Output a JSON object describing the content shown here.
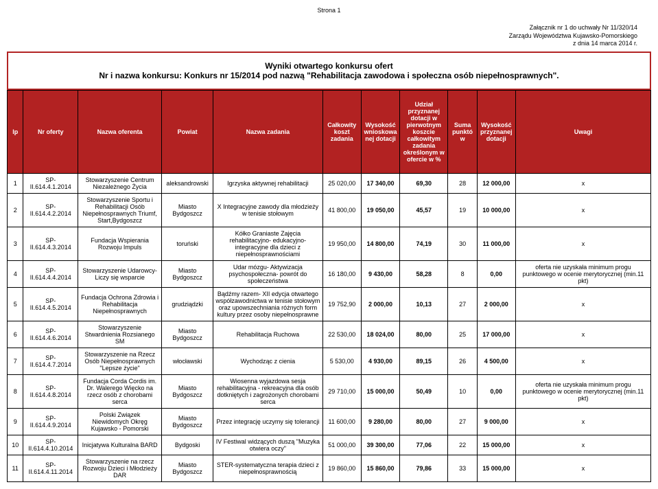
{
  "page_label": "Strona 1",
  "attachment": {
    "line1": "Załącznik nr 1 do uchwały Nr 11/320/14",
    "line2": "Zarządu Województwa Kujawsko-Pomorskiego",
    "line3": "z dnia 14 marca 2014 r."
  },
  "title": {
    "main": "Wyniki otwartego konkursu ofert",
    "sub": "Nr i nazwa konkursu: Konkurs nr 15/2014 pod nazwą \"Rehabilitacja zawodowa i społeczna osób niepełnosprawnych\"."
  },
  "columns": [
    "lp",
    "Nr oferty",
    "Nazwa oferenta",
    "Powiat",
    "Nazwa zadania",
    "Całkowity koszt zadania",
    "Wysokość wnioskowanej dotacji",
    "Udział przyznanej dotacji w pierwotnym koszcie całkowitym zadania określonym w ofercie w %",
    "Suma punktów",
    "Wysokość przyznanej dotacji",
    "Uwagi"
  ],
  "rows": [
    {
      "lp": "1",
      "nr": "SP-II.614.4.1.2014",
      "oferent": "Stowarzyszenie Centrum Niezależnego Życia",
      "powiat": "aleksandrowski",
      "zadanie": "Igrzyska aktywnej rehabilitacji",
      "koszt": "25 020,00",
      "wniosk": "17 340,00",
      "udzial": "69,30",
      "suma": "28",
      "przyzn": "12 000,00",
      "uwagi": "x"
    },
    {
      "lp": "2",
      "nr": "SP-II.614.4.2.2014",
      "oferent": "Stowarzyszenie Sportu i Rehabilitacji Osób Niepełnosprawnych Triumf, Start,Bydgoszcz",
      "powiat": "Miasto Bydgoszcz",
      "zadanie": "X Integracyjne zawody dla młodzieży w tenisie stołowym",
      "koszt": "41 800,00",
      "wniosk": "19 050,00",
      "udzial": "45,57",
      "suma": "19",
      "przyzn": "10 000,00",
      "uwagi": "x"
    },
    {
      "lp": "3",
      "nr": "SP-II.614.4.3.2014",
      "oferent": "Fundacja Wspierania Rozwoju Impuls",
      "powiat": "toruński",
      "zadanie": "Kółko Graniaste Zajęcia rehabilitacyjno- edukacyjno- integracyjne dla dzieci z niepełnosprawnościami",
      "koszt": "19 950,00",
      "wniosk": "14 800,00",
      "udzial": "74,19",
      "suma": "30",
      "przyzn": "11 000,00",
      "uwagi": "x"
    },
    {
      "lp": "4",
      "nr": "SP-II.614.4.4.2014",
      "oferent": "Stowarzyszenie Udarowcy- Liczy się wsparcie",
      "powiat": "Miasto Bydgoszcz",
      "zadanie": "Udar mózgu- Aktywizacja psychospołeczna- powrót do społeczeństwa",
      "koszt": "16 180,00",
      "wniosk": "9 430,00",
      "udzial": "58,28",
      "suma": "8",
      "przyzn": "0,00",
      "uwagi": "oferta nie uzyskała minimum progu punktowego w ocenie merytorycznej (min.11 pkt)"
    },
    {
      "lp": "5",
      "nr": "SP-II.614.4.5.2014",
      "oferent": "Fundacja Ochrona Zdrowia i Rehabilitacja Niepełnosprawnych",
      "powiat": "grudziądzki",
      "zadanie": "Bądźmy razem- XII edycja otwartego współzawodnictwa w tenisie stołowym oraz upowszechniania różnych form kultury przez osoby niepełnosprawne",
      "koszt": "19 752,90",
      "wniosk": "2 000,00",
      "udzial": "10,13",
      "suma": "27",
      "przyzn": "2 000,00",
      "uwagi": "x"
    },
    {
      "lp": "6",
      "nr": "SP-II.614.4.6.2014",
      "oferent": "Stowarzyszenie Stwardnienia Rozsianego SM",
      "powiat": "Miasto Bydgoszcz",
      "zadanie": "Rehabilitacja Ruchowa",
      "koszt": "22 530,00",
      "wniosk": "18 024,00",
      "udzial": "80,00",
      "suma": "25",
      "przyzn": "17 000,00",
      "uwagi": "x"
    },
    {
      "lp": "7",
      "nr": "SP-II.614.4.7.2014",
      "oferent": "Stowarzyszenie na Rzecz Osób Niepełnosprawnych \"Lepsze życie\"",
      "powiat": "włocławski",
      "zadanie": "Wychodząc z cienia",
      "koszt": "5 530,00",
      "wniosk": "4 930,00",
      "udzial": "89,15",
      "suma": "26",
      "przyzn": "4 500,00",
      "uwagi": "x"
    },
    {
      "lp": "8",
      "nr": "SP-II.614.4.8.2014",
      "oferent": "Fundacja Corda Cordis im. Dr. Walerego Więcko na rzecz osób z chorobami serca",
      "powiat": "Miasto Bydgoszcz",
      "zadanie": "Wiosenna wyjazdowa sesja rehabilitacyjna - rekreacyjna dla osób dotkniętych i zagrożonych chorobami serca",
      "koszt": "29 710,00",
      "wniosk": "15 000,00",
      "udzial": "50,49",
      "suma": "10",
      "przyzn": "0,00",
      "uwagi": "oferta nie uzyskała minimum progu punktowego w ocenie merytorycznej (min.11 pkt)"
    },
    {
      "lp": "9",
      "nr": "SP-II.614.4.9.2014",
      "oferent": "Polski Związek Niewidomych Okręg Kujawsko - Pomorski",
      "powiat": "Miasto Bydgoszcz",
      "zadanie": "Przez integrację uczymy się tolerancji",
      "koszt": "11 600,00",
      "wniosk": "9 280,00",
      "udzial": "80,00",
      "suma": "27",
      "przyzn": "9 000,00",
      "uwagi": "x"
    },
    {
      "lp": "10",
      "nr": "SP-II.614.4.10.2014",
      "oferent": "Inicjatywa Kulturalna BARD",
      "powiat": "Bydgoski",
      "zadanie": "IV Festiwal widzących duszą \"Muzyka otwiera oczy\"",
      "koszt": "51 000,00",
      "wniosk": "39 300,00",
      "udzial": "77,06",
      "suma": "22",
      "przyzn": "15 000,00",
      "uwagi": "x"
    },
    {
      "lp": "11",
      "nr": "SP-II.614.4.11.2014",
      "oferent": "Stowarzyszenie na rzecz Rozwoju Dzieci i Młodzieży DAR",
      "powiat": "Miasto Bydgoszcz",
      "zadanie": "STER-systematyczna terapia dzieci z niepełnosprawnością",
      "koszt": "19 860,00",
      "wniosk": "15 860,00",
      "udzial": "79,86",
      "suma": "33",
      "przyzn": "15 000,00",
      "uwagi": "x"
    }
  ],
  "colors": {
    "header_bg": "#b22222",
    "header_fg": "#ffffff",
    "border": "#000000"
  }
}
